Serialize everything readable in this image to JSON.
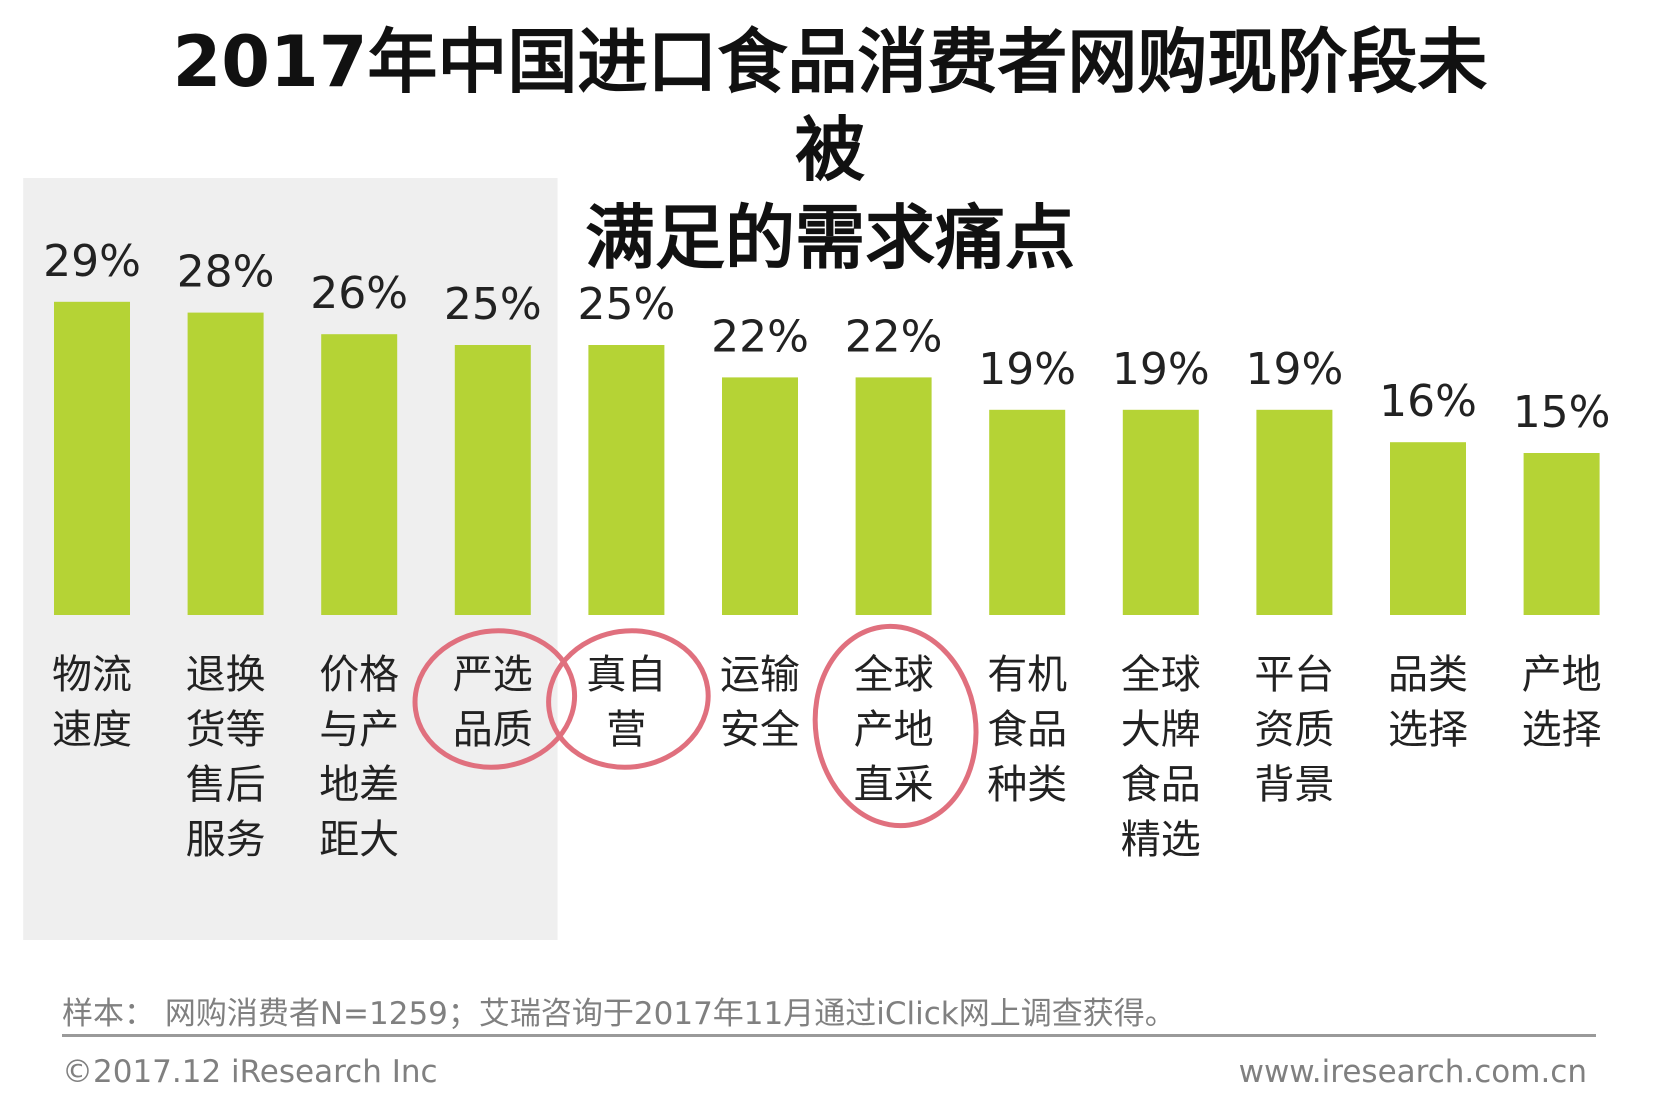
{
  "title_line1": "2017年中国进口食品消费者网购现阶段未被",
  "title_line2": "满足的需求痛点",
  "chart_data": {
    "type": "bar",
    "categories": [
      [
        "物流",
        "速度"
      ],
      [
        "退换",
        "货等",
        "售后",
        "服务"
      ],
      [
        "价格",
        "与产",
        "地差",
        "距大"
      ],
      [
        "严选",
        "品质"
      ],
      [
        "真自",
        "营"
      ],
      [
        "运输",
        "安全"
      ],
      [
        "全球",
        "产地",
        "直采"
      ],
      [
        "有机",
        "食品",
        "种类"
      ],
      [
        "全球",
        "大牌",
        "食品",
        "精选"
      ],
      [
        "平台",
        "资质",
        "背景"
      ],
      [
        "品类",
        "选择"
      ],
      [
        "产地",
        "选择"
      ]
    ],
    "values": [
      29,
      28,
      26,
      25,
      25,
      22,
      22,
      19,
      19,
      19,
      16,
      15
    ],
    "value_labels": [
      "29%",
      "28%",
      "26%",
      "25%",
      "25%",
      "22%",
      "22%",
      "19%",
      "19%",
      "19%",
      "16%",
      "15%"
    ],
    "highlighted_indices": [
      0,
      1,
      2,
      3
    ],
    "circled_indices": [
      3,
      4,
      6
    ],
    "ylim": [
      0,
      30
    ],
    "grid": false,
    "legend": "none"
  },
  "colors": {
    "bar": "#b5d335",
    "highlight_bg": "#efefef",
    "circle": "#e0707e",
    "text": "#222222",
    "footer_text": "#808080"
  },
  "footer": {
    "sample": "样本： 网购消费者N=1259；艾瑞咨询于2017年11月通过iClick网上调查获得。",
    "copyright": "©2017.12 iResearch Inc",
    "website": "www.iresearch.com.cn"
  }
}
